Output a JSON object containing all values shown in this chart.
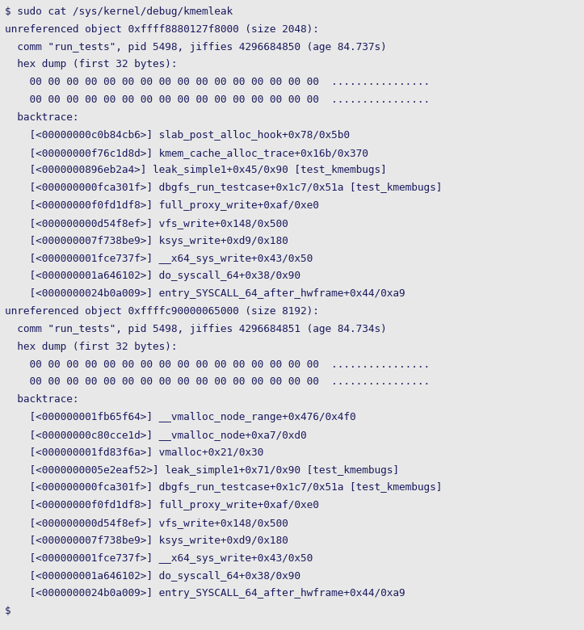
{
  "background_color": "#e8e8e8",
  "text_color": "#1a1a5e",
  "font_family": "monospace",
  "font_size": 9.2,
  "figsize": [
    7.23,
    7.8
  ],
  "dpi": 100,
  "lines": [
    "$ sudo cat /sys/kernel/debug/kmemleak",
    "unreferenced object 0xffff8880127f8000 (size 2048):",
    "  comm \"run_tests\", pid 5498, jiffies 4296684850 (age 84.737s)",
    "  hex dump (first 32 bytes):",
    "    00 00 00 00 00 00 00 00 00 00 00 00 00 00 00 00  ................",
    "    00 00 00 00 00 00 00 00 00 00 00 00 00 00 00 00  ................",
    "  backtrace:",
    "    [<00000000c0b84cb6>] slab_post_alloc_hook+0x78/0x5b0",
    "    [<00000000f76c1d8d>] kmem_cache_alloc_trace+0x16b/0x370",
    "    [<0000000896eb2a4>] leak_simple1+0x45/0x90 [test_kmembugs]",
    "    [<000000000fca301f>] dbgfs_run_testcase+0x1c7/0x51a [test_kmembugs]",
    "    [<00000000f0fd1df8>] full_proxy_write+0xaf/0xe0",
    "    [<000000000d54f8ef>] vfs_write+0x148/0x500",
    "    [<000000007f738be9>] ksys_write+0xd9/0x180",
    "    [<000000001fce737f>] __x64_sys_write+0x43/0x50",
    "    [<000000001a646102>] do_syscall_64+0x38/0x90",
    "    [<0000000024b0a009>] entry_SYSCALL_64_after_hwframe+0x44/0xa9",
    "unreferenced object 0xffffc90000065000 (size 8192):",
    "  comm \"run_tests\", pid 5498, jiffies 4296684851 (age 84.734s)",
    "  hex dump (first 32 bytes):",
    "    00 00 00 00 00 00 00 00 00 00 00 00 00 00 00 00  ................",
    "    00 00 00 00 00 00 00 00 00 00 00 00 00 00 00 00  ................",
    "  backtrace:",
    "    [<000000001fb65f64>] __vmalloc_node_range+0x476/0x4f0",
    "    [<00000000c80cce1d>] __vmalloc_node+0xa7/0xd0",
    "    [<000000001fd83f6a>] vmalloc+0x21/0x30",
    "    [<0000000005e2eaf52>] leak_simple1+0x71/0x90 [test_kmembugs]",
    "    [<000000000fca301f>] dbgfs_run_testcase+0x1c7/0x51a [test_kmembugs]",
    "    [<00000000f0fd1df8>] full_proxy_write+0xaf/0xe0",
    "    [<000000000d54f8ef>] vfs_write+0x148/0x500",
    "    [<000000007f738be9>] ksys_write+0xd9/0x180",
    "    [<000000001fce737f>] __x64_sys_write+0x43/0x50",
    "    [<000000001a646102>] do_syscall_64+0x38/0x90",
    "    [<0000000024b0a009>] entry_SYSCALL_64_after_hwframe+0x44/0xa9",
    "$"
  ]
}
